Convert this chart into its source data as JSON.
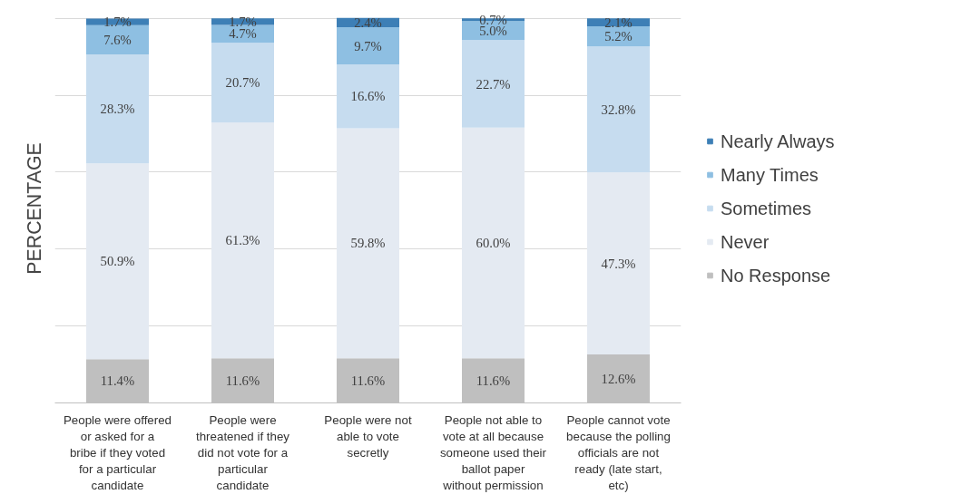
{
  "chart_data": {
    "type": "bar",
    "stacked": true,
    "ylabel": "PERCENTAGE",
    "categories": [
      "People were offered or asked for a bribe if they voted for a particular candidate",
      "People were threatened if they did not vote for a particular candidate",
      "People were not able to vote secretly",
      "People not able to vote at all because someone used their ballot paper without permission",
      "People cannot vote because the polling officials are not ready (late start, etc)"
    ],
    "series": [
      {
        "name": "No Response",
        "color": "#bfbfbf",
        "values": [
          11.4,
          11.6,
          11.6,
          11.6,
          12.6
        ],
        "value_labels": [
          "11.4%",
          "11.6%",
          "11.6%",
          "11.6%",
          "12.6%"
        ]
      },
      {
        "name": "Never",
        "color": "#e4eaf2",
        "values": [
          50.9,
          61.3,
          59.8,
          60.0,
          47.3
        ],
        "value_labels": [
          "50.9%",
          "61.3%",
          "59.8%",
          "60.0%",
          "47.3%"
        ]
      },
      {
        "name": "Sometimes",
        "color": "#c6dcef",
        "values": [
          28.3,
          20.7,
          16.6,
          22.7,
          32.8
        ],
        "value_labels": [
          "28.3%",
          "20.7%",
          "16.6%",
          "22.7%",
          "32.8%"
        ]
      },
      {
        "name": "Many Times",
        "color": "#8ebfe2",
        "values": [
          7.6,
          4.7,
          9.7,
          5.0,
          5.2
        ],
        "value_labels": [
          "7.6%",
          "4.7%",
          "9.7%",
          "5.0%",
          "5.2%"
        ]
      },
      {
        "name": "Nearly Always",
        "color": "#3d7fb6",
        "values": [
          1.7,
          1.7,
          2.4,
          0.7,
          2.1
        ],
        "value_labels": [
          "1.7%",
          "1.7%",
          "2.4%",
          "0.7%",
          "2.1%"
        ]
      }
    ],
    "tick_labels": "x",
    "grid": "y",
    "legend": "right"
  }
}
